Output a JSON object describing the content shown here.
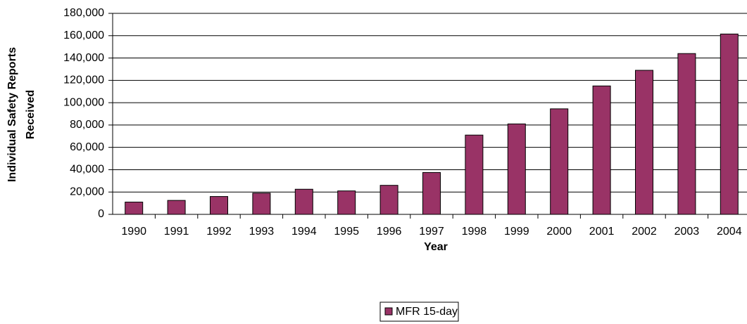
{
  "chart_data": {
    "type": "bar",
    "xlabel": "Year",
    "ylabel": [
      "Individual Safety Reports",
      "Received"
    ],
    "categories": [
      "1990",
      "1991",
      "1992",
      "1993",
      "1994",
      "1995",
      "1996",
      "1997",
      "1998",
      "1999",
      "2000",
      "2001",
      "2002",
      "2003",
      "2004"
    ],
    "series": [
      {
        "name": "MFR 15-day",
        "color": "#993366",
        "values": [
          11000,
          12500,
          16000,
          19000,
          22500,
          21000,
          26000,
          37500,
          71000,
          81000,
          94500,
          115000,
          129000,
          144000,
          161500
        ]
      }
    ],
    "ylim": [
      0,
      180000
    ],
    "yticks": [
      0,
      {
        "value": 20000,
        "label": "20,000"
      },
      {
        "value": 40000,
        "label": "40,000"
      },
      {
        "value": 60000,
        "label": "60,000"
      },
      {
        "value": 80000,
        "label": "80,000"
      },
      {
        "value": 100000,
        "label": "100,000"
      },
      {
        "value": 120000,
        "label": "120,000"
      },
      {
        "value": 140000,
        "label": "140,000"
      },
      {
        "value": 160000,
        "label": "160,000"
      },
      {
        "value": 180000,
        "label": "180,000"
      }
    ],
    "grid": true,
    "legend": "bottom"
  }
}
